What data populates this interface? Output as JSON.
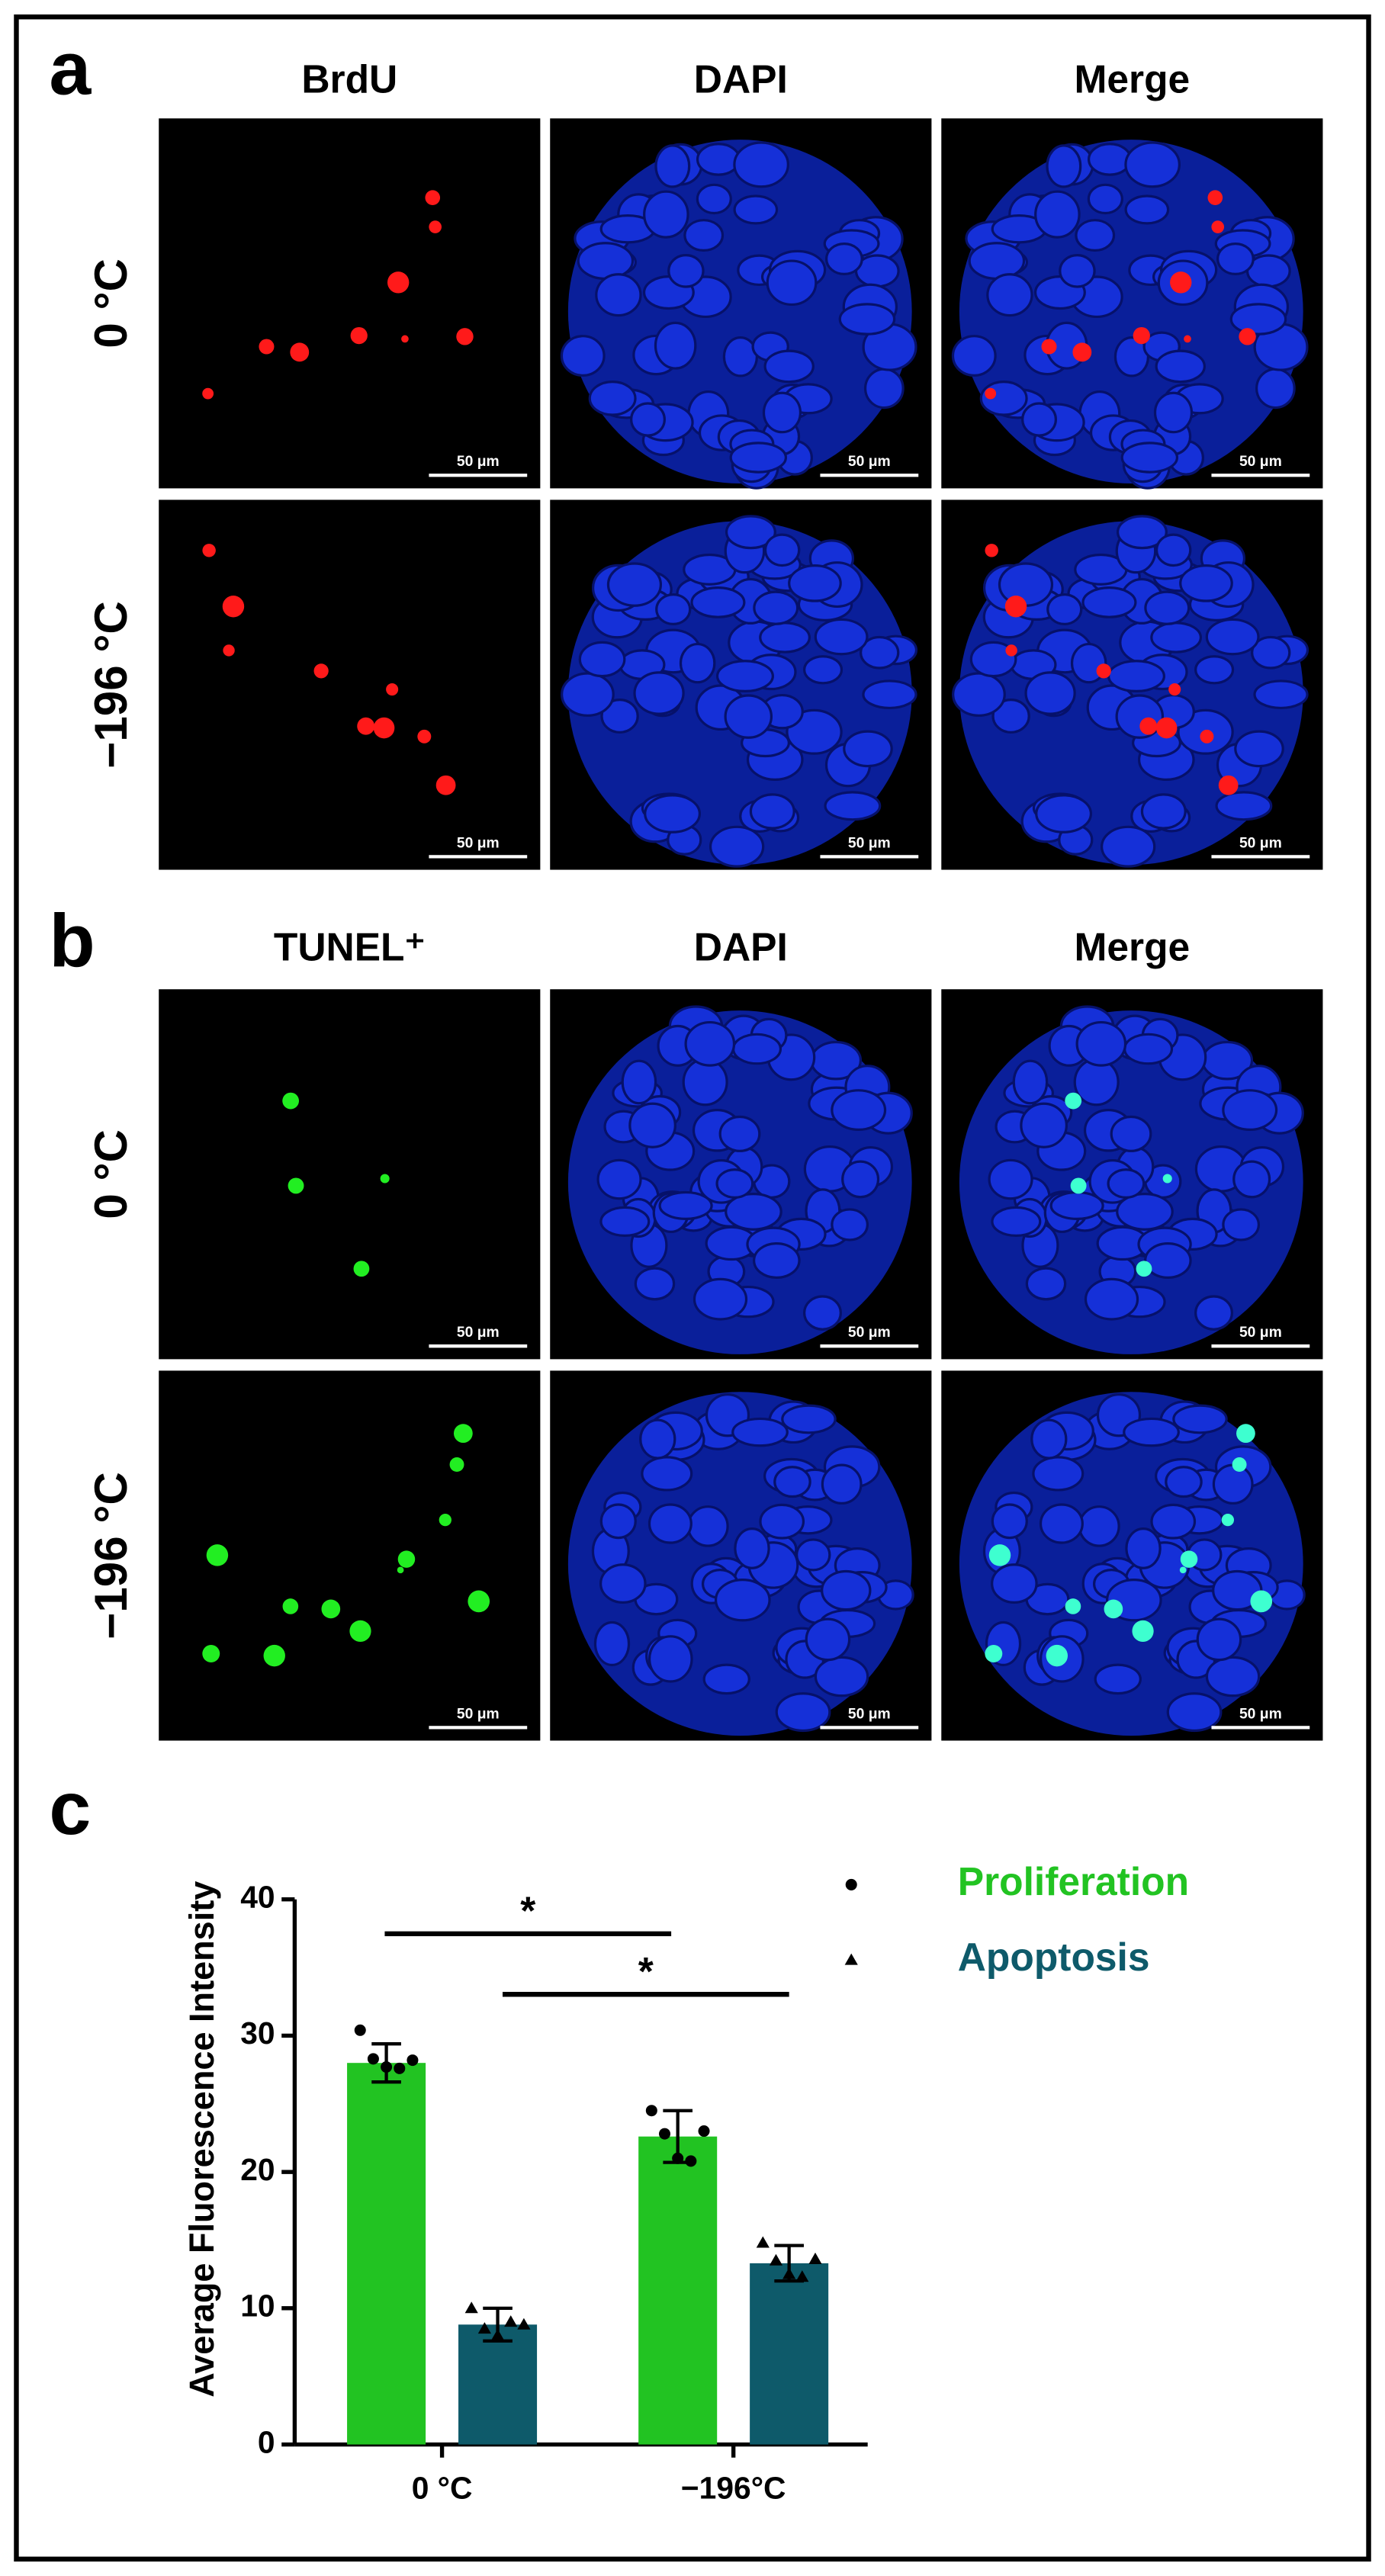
{
  "figure": {
    "panels": [
      {
        "label": "a",
        "columns": [
          "BrdU",
          "DAPI",
          "Merge"
        ],
        "rows": [
          "0 °C",
          "−196 °C"
        ],
        "scale_bar": "50 μm"
      },
      {
        "label": "b",
        "columns": [
          "TUNEL⁺",
          "DAPI",
          "Merge"
        ],
        "rows": [
          "0 °C",
          "−196 °C"
        ],
        "scale_bar": "50 μm"
      }
    ],
    "chart_label": "c"
  },
  "chart_data": {
    "type": "bar",
    "y_label": "Average Fluorescence Intensity",
    "categories": [
      "0 °C",
      "−196°C"
    ],
    "series": [
      {
        "name": "Proliferation",
        "color": "#22c322",
        "marker": "circle",
        "values": [
          28.0,
          22.6
        ],
        "errors": [
          1.4,
          1.9
        ],
        "points": [
          [
            30.4,
            28.3,
            27.7,
            27.6,
            28.2
          ],
          [
            24.5,
            22.8,
            21.0,
            20.8,
            23.0
          ]
        ]
      },
      {
        "name": "Apoptosis",
        "color": "#0e5a6a",
        "marker": "triangle",
        "values": [
          8.8,
          13.3
        ],
        "errors": [
          1.2,
          1.3
        ],
        "points": [
          [
            10.0,
            8.5,
            8.0,
            9.0,
            8.8
          ],
          [
            14.8,
            13.5,
            12.5,
            12.3,
            13.6
          ]
        ]
      }
    ],
    "annotations": [
      "*",
      "*"
    ],
    "ylim": [
      0,
      40
    ],
    "yticks": [
      0,
      10,
      20,
      30,
      40
    ],
    "grid": false
  }
}
